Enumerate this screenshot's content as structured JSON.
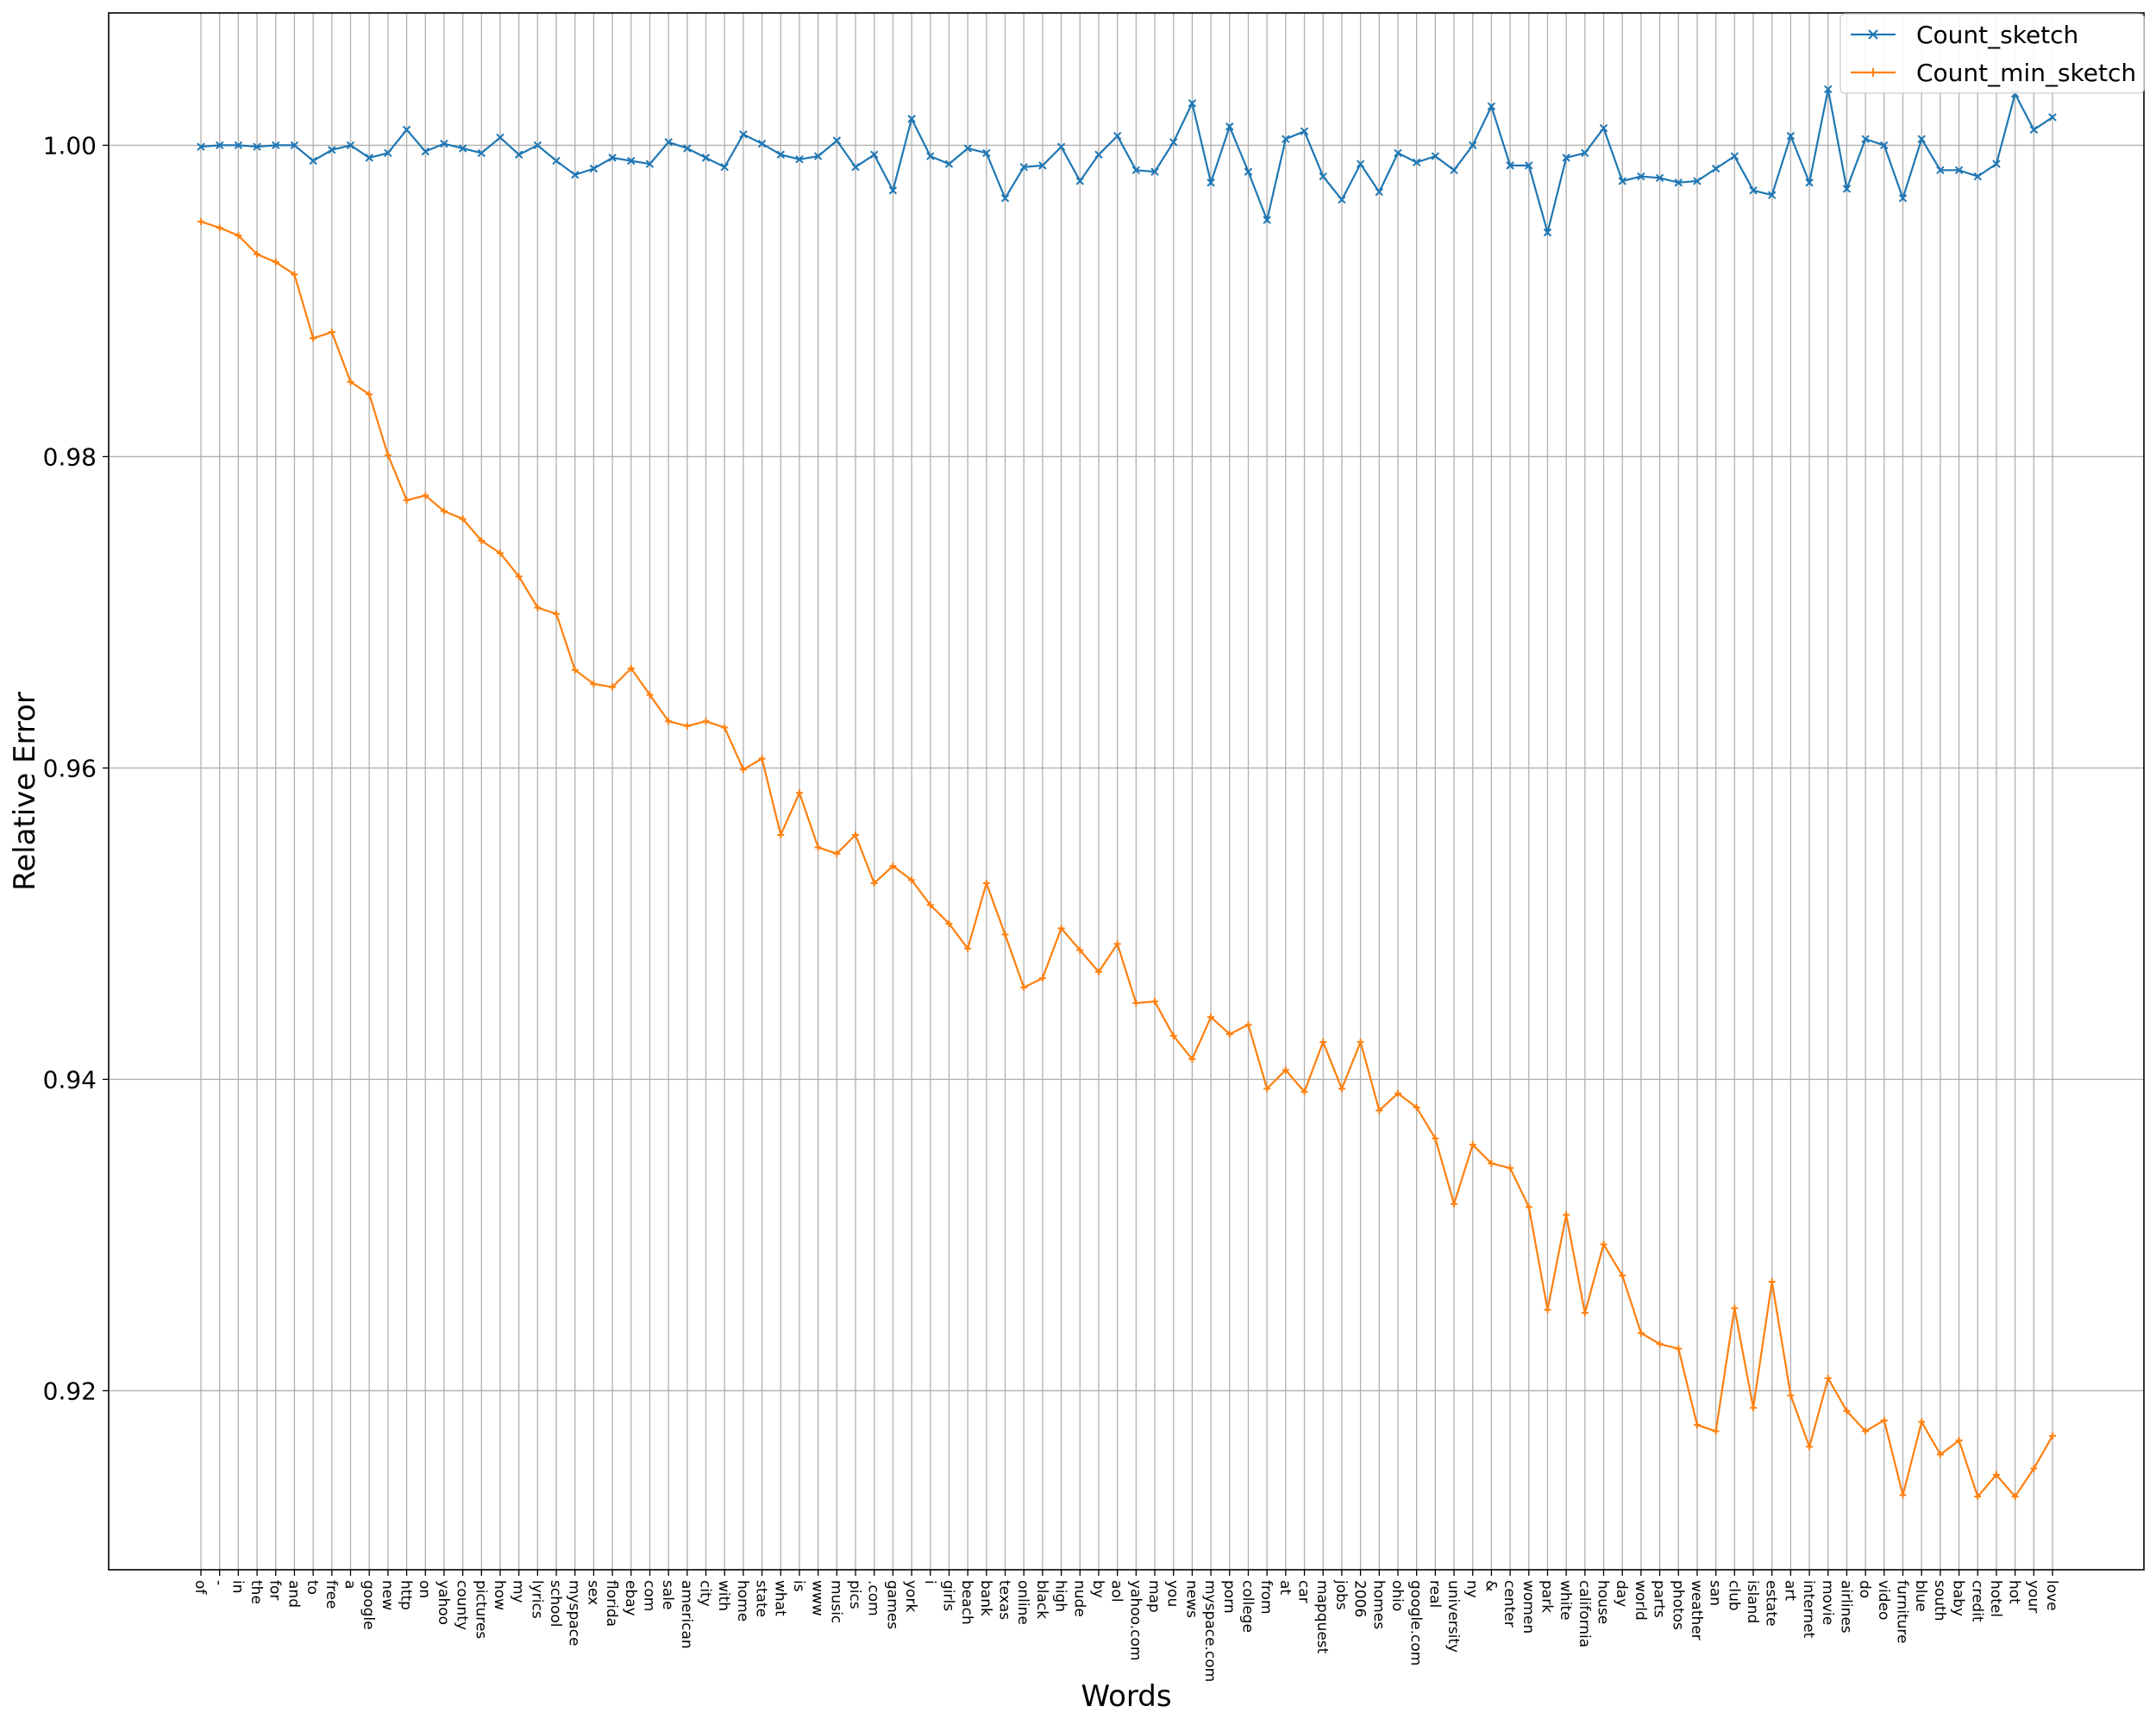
{
  "chart_data": {
    "type": "line",
    "title": "",
    "xlabel": "Words",
    "ylabel": "Relative  Error",
    "ylim": [
      0.9085,
      1.0085
    ],
    "yticks": [
      0.92,
      0.94,
      0.96,
      0.98,
      1.0
    ],
    "ytick_labels": [
      "0.92",
      "0.94",
      "0.96",
      "0.98",
      "1.00"
    ],
    "grid": true,
    "legend_position": "top-right",
    "categories": [
      "of",
      "-",
      "in",
      "the",
      "for",
      "and",
      "to",
      "free",
      "a",
      "google",
      "new",
      "http",
      "on",
      "yahoo",
      "county",
      "pictures",
      "how",
      "my",
      "lyrics",
      "school",
      "myspace",
      "sex",
      "florida",
      "ebay",
      "com",
      "sale",
      "american",
      "city",
      "with",
      "home",
      "state",
      "what",
      "is",
      "www",
      "music",
      "pics",
      ".com",
      "games",
      "york",
      "i",
      "girls",
      "beach",
      "bank",
      "texas",
      "online",
      "black",
      "high",
      "nude",
      "by",
      "aol",
      "yahoo.com",
      "map",
      "you",
      "news",
      "myspace.com",
      "porn",
      "college",
      "from",
      "at",
      "car",
      "mapquest",
      "jobs",
      "2006",
      "homes",
      "ohio",
      "google.com",
      "real",
      "university",
      "ny",
      "&",
      "center",
      "women",
      "park",
      "white",
      "california",
      "house",
      "day",
      "world",
      "parts",
      "photos",
      "weather",
      "san",
      "club",
      "island",
      "estate",
      "art",
      "internet",
      "movie",
      "airlines",
      "do",
      "video",
      "furniture",
      "blue",
      "south",
      "baby",
      "credit",
      "hotel",
      "hot",
      "your",
      "love"
    ],
    "series": [
      {
        "name": "Count_sketch",
        "color": "#1f77b4",
        "marker": "x",
        "values": [
          0.9999,
          1.0,
          1.0,
          0.9999,
          1.0,
          1.0,
          0.999,
          0.9997,
          1.0,
          0.9992,
          0.9995,
          1.001,
          0.9996,
          1.0001,
          0.9998,
          0.9995,
          1.0005,
          0.9994,
          1.0,
          0.999,
          0.9981,
          0.9985,
          0.9992,
          0.999,
          0.9988,
          1.0002,
          0.9998,
          0.9992,
          0.9986,
          1.0007,
          1.0001,
          0.9994,
          0.9991,
          0.9993,
          1.0003,
          0.9986,
          0.9994,
          0.9971,
          1.0017,
          0.9993,
          0.9988,
          0.9998,
          0.9995,
          0.9966,
          0.9986,
          0.9987,
          0.9999,
          0.9977,
          0.9994,
          1.0006,
          0.9984,
          0.9983,
          1.0002,
          1.0027,
          0.9976,
          1.0012,
          0.9983,
          0.9952,
          1.0004,
          1.0009,
          0.998,
          0.9965,
          0.9988,
          0.997,
          0.9995,
          0.9989,
          0.9993,
          0.9984,
          1.0,
          1.0025,
          0.9987,
          0.9987,
          0.9944,
          0.9992,
          0.9995,
          1.0011,
          0.9977,
          0.998,
          0.9979,
          0.9976,
          0.9977,
          0.9985,
          0.9993,
          0.9971,
          0.9968,
          1.0006,
          0.9976,
          1.0036,
          0.9972,
          1.0004,
          1.0,
          0.9966,
          1.0004,
          0.9984,
          0.9984,
          0.998,
          0.9988,
          1.0033,
          1.001,
          1.0018
        ]
      },
      {
        "name": "Count_min_sketch",
        "color": "#ff7f0e",
        "marker": "+",
        "values": [
          0.9951,
          0.9947,
          0.9942,
          0.993,
          0.9925,
          0.9917,
          0.9876,
          0.988,
          0.9848,
          0.984,
          0.9801,
          0.9772,
          0.9775,
          0.9765,
          0.976,
          0.9746,
          0.9738,
          0.9723,
          0.9703,
          0.9699,
          0.9663,
          0.9654,
          0.9652,
          0.9664,
          0.9647,
          0.963,
          0.9627,
          0.963,
          0.9626,
          0.9599,
          0.9606,
          0.9557,
          0.9584,
          0.9549,
          0.9545,
          0.9557,
          0.9526,
          0.9537,
          0.9528,
          0.9512,
          0.95,
          0.9484,
          0.9526,
          0.9493,
          0.9459,
          0.9465,
          0.9497,
          0.9483,
          0.9469,
          0.9487,
          0.9449,
          0.945,
          0.9428,
          0.9413,
          0.944,
          0.9429,
          0.9435,
          0.9394,
          0.9406,
          0.9392,
          0.9424,
          0.9394,
          0.9424,
          0.938,
          0.9391,
          0.9382,
          0.9362,
          0.932,
          0.9358,
          0.9346,
          0.9343,
          0.9318,
          0.9252,
          0.9313,
          0.925,
          0.9294,
          0.9274,
          0.9237,
          0.923,
          0.9227,
          0.9178,
          0.9174,
          0.9253,
          0.9189,
          0.927,
          0.9197,
          0.9164,
          0.9208,
          0.9187,
          0.9174,
          0.9181,
          0.9133,
          0.918,
          0.9159,
          0.9168,
          0.9132,
          0.9146,
          0.9132,
          0.915,
          0.9171
        ]
      }
    ]
  }
}
